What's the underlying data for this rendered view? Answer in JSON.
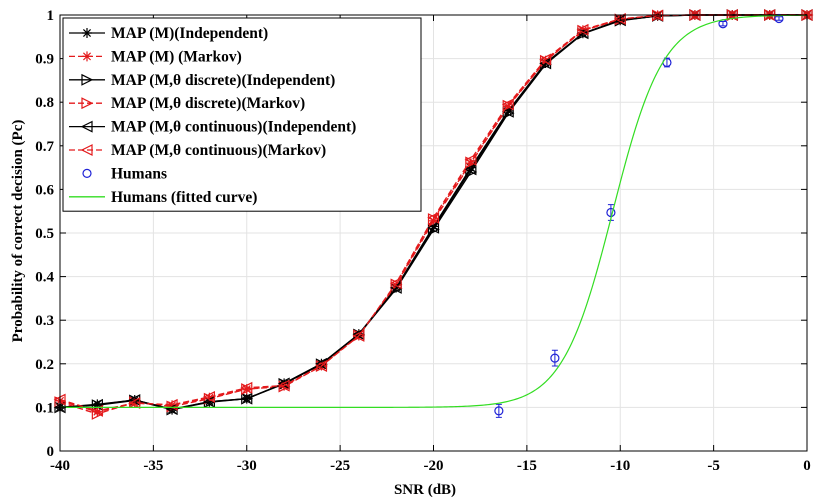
{
  "chart_data": {
    "type": "line",
    "title": "",
    "xlabel": "SNR (dB)",
    "ylabel": "Probability of correct decision (Pc)",
    "xlim": [
      -40,
      0
    ],
    "ylim": [
      0,
      1
    ],
    "xticks": [
      -40,
      -35,
      -30,
      -25,
      -20,
      -15,
      -10,
      -5,
      0
    ],
    "yticks": [
      0,
      0.1,
      0.2,
      0.3,
      0.4,
      0.5,
      0.6,
      0.7,
      0.8,
      0.9,
      1
    ],
    "xtick_labels": [
      "-40",
      "-35",
      "-30",
      "-25",
      "-20",
      "-15",
      "-10",
      "-5",
      "0"
    ],
    "ytick_labels": [
      "0",
      "0.1",
      "0.2",
      "0.3",
      "0.4",
      "0.5",
      "0.6",
      "0.7",
      "0.8",
      "0.9",
      "1"
    ],
    "grid": true,
    "legend_position": "top-left",
    "colors": {
      "black": "#000000",
      "red": "#e41a1c",
      "blue": "#1f22d6",
      "green": "#33dd22"
    },
    "series": [
      {
        "name": "MAP (M)(Independent)",
        "color": "#000000",
        "dash": "solid",
        "marker": "asterisk",
        "x": [
          -40,
          -38,
          -36,
          -34,
          -32,
          -30,
          -28,
          -26,
          -24,
          -22,
          -20,
          -18,
          -16,
          -14,
          -12,
          -10,
          -8,
          -6,
          -4,
          -2,
          0
        ],
        "y": [
          0.1,
          0.107,
          0.117,
          0.095,
          0.113,
          0.12,
          0.155,
          0.2,
          0.268,
          0.375,
          0.515,
          0.65,
          0.78,
          0.89,
          0.958,
          0.988,
          0.998,
          1.0,
          1.0,
          1.0,
          1.0
        ]
      },
      {
        "name": "MAP (M) (Markov)",
        "color": "#e41a1c",
        "dash": "dashed",
        "marker": "asterisk",
        "x": [
          -40,
          -38,
          -36,
          -34,
          -32,
          -30,
          -28,
          -26,
          -24,
          -22,
          -20,
          -18,
          -16,
          -14,
          -12,
          -10,
          -8,
          -6,
          -4,
          -2,
          0
        ],
        "y": [
          0.115,
          0.09,
          0.11,
          0.105,
          0.122,
          0.142,
          0.15,
          0.196,
          0.265,
          0.38,
          0.528,
          0.66,
          0.79,
          0.895,
          0.965,
          0.99,
          0.999,
          1.0,
          1.0,
          1.0,
          1.0
        ]
      },
      {
        "name": "MAP (M,θ discrete)(Independent)",
        "color": "#000000",
        "dash": "solid",
        "marker": "triangle-right",
        "x": [
          -40,
          -38,
          -36,
          -34,
          -32,
          -30,
          -28,
          -26,
          -24,
          -22,
          -20,
          -18,
          -16,
          -14,
          -12,
          -10,
          -8,
          -6,
          -4,
          -2,
          0
        ],
        "y": [
          0.1,
          0.105,
          0.116,
          0.095,
          0.112,
          0.12,
          0.154,
          0.199,
          0.267,
          0.372,
          0.508,
          0.64,
          0.775,
          0.887,
          0.957,
          0.987,
          0.998,
          1.0,
          1.0,
          1.0,
          1.0
        ]
      },
      {
        "name": "MAP (M,θ discrete)(Markov)",
        "color": "#e41a1c",
        "dash": "dashed",
        "marker": "triangle-right",
        "x": [
          -40,
          -38,
          -36,
          -34,
          -32,
          -30,
          -28,
          -26,
          -24,
          -22,
          -20,
          -18,
          -16,
          -14,
          -12,
          -10,
          -8,
          -6,
          -4,
          -2,
          0
        ],
        "y": [
          0.112,
          0.085,
          0.112,
          0.102,
          0.12,
          0.142,
          0.148,
          0.195,
          0.265,
          0.382,
          0.532,
          0.662,
          0.792,
          0.895,
          0.964,
          0.99,
          0.999,
          1.0,
          1.0,
          1.0,
          1.0
        ]
      },
      {
        "name": "MAP (M,θ continuous)(Independent)",
        "color": "#000000",
        "dash": "solid",
        "marker": "triangle-left",
        "x": [
          -40,
          -38,
          -36,
          -34,
          -32,
          -30,
          -28,
          -26,
          -24,
          -22,
          -20,
          -18,
          -16,
          -14,
          -12,
          -10,
          -8,
          -6,
          -4,
          -2,
          0
        ],
        "y": [
          0.1,
          0.106,
          0.117,
          0.096,
          0.113,
          0.12,
          0.155,
          0.2,
          0.268,
          0.374,
          0.512,
          0.646,
          0.778,
          0.889,
          0.958,
          0.988,
          0.998,
          1.0,
          1.0,
          1.0,
          1.0
        ]
      },
      {
        "name": "MAP (M,θ continuous)(Markov)",
        "color": "#e41a1c",
        "dash": "dashed",
        "marker": "triangle-left",
        "x": [
          -40,
          -38,
          -36,
          -34,
          -32,
          -30,
          -28,
          -26,
          -24,
          -22,
          -20,
          -18,
          -16,
          -14,
          -12,
          -10,
          -8,
          -6,
          -4,
          -2,
          0
        ],
        "y": [
          0.118,
          0.092,
          0.11,
          0.106,
          0.124,
          0.145,
          0.15,
          0.195,
          0.264,
          0.385,
          0.535,
          0.668,
          0.795,
          0.898,
          0.966,
          0.991,
          0.999,
          1.0,
          1.0,
          1.0,
          1.0
        ]
      },
      {
        "name": "Humans",
        "color": "#1f22d6",
        "dash": "none",
        "marker": "circle",
        "x": [
          -16.5,
          -13.5,
          -10.5,
          -7.5,
          -4.5,
          -1.5
        ],
        "y": [
          0.092,
          0.213,
          0.547,
          0.891,
          0.98,
          0.992
        ],
        "err": [
          0.015,
          0.018,
          0.018,
          0.01,
          0.005,
          0.004
        ]
      },
      {
        "name": "Humans (fitted curve)",
        "color": "#33dd22",
        "dash": "solid",
        "marker": "none",
        "fit": {
          "floor": 0.1,
          "center": -10.4,
          "scale": 1.35
        }
      }
    ]
  }
}
